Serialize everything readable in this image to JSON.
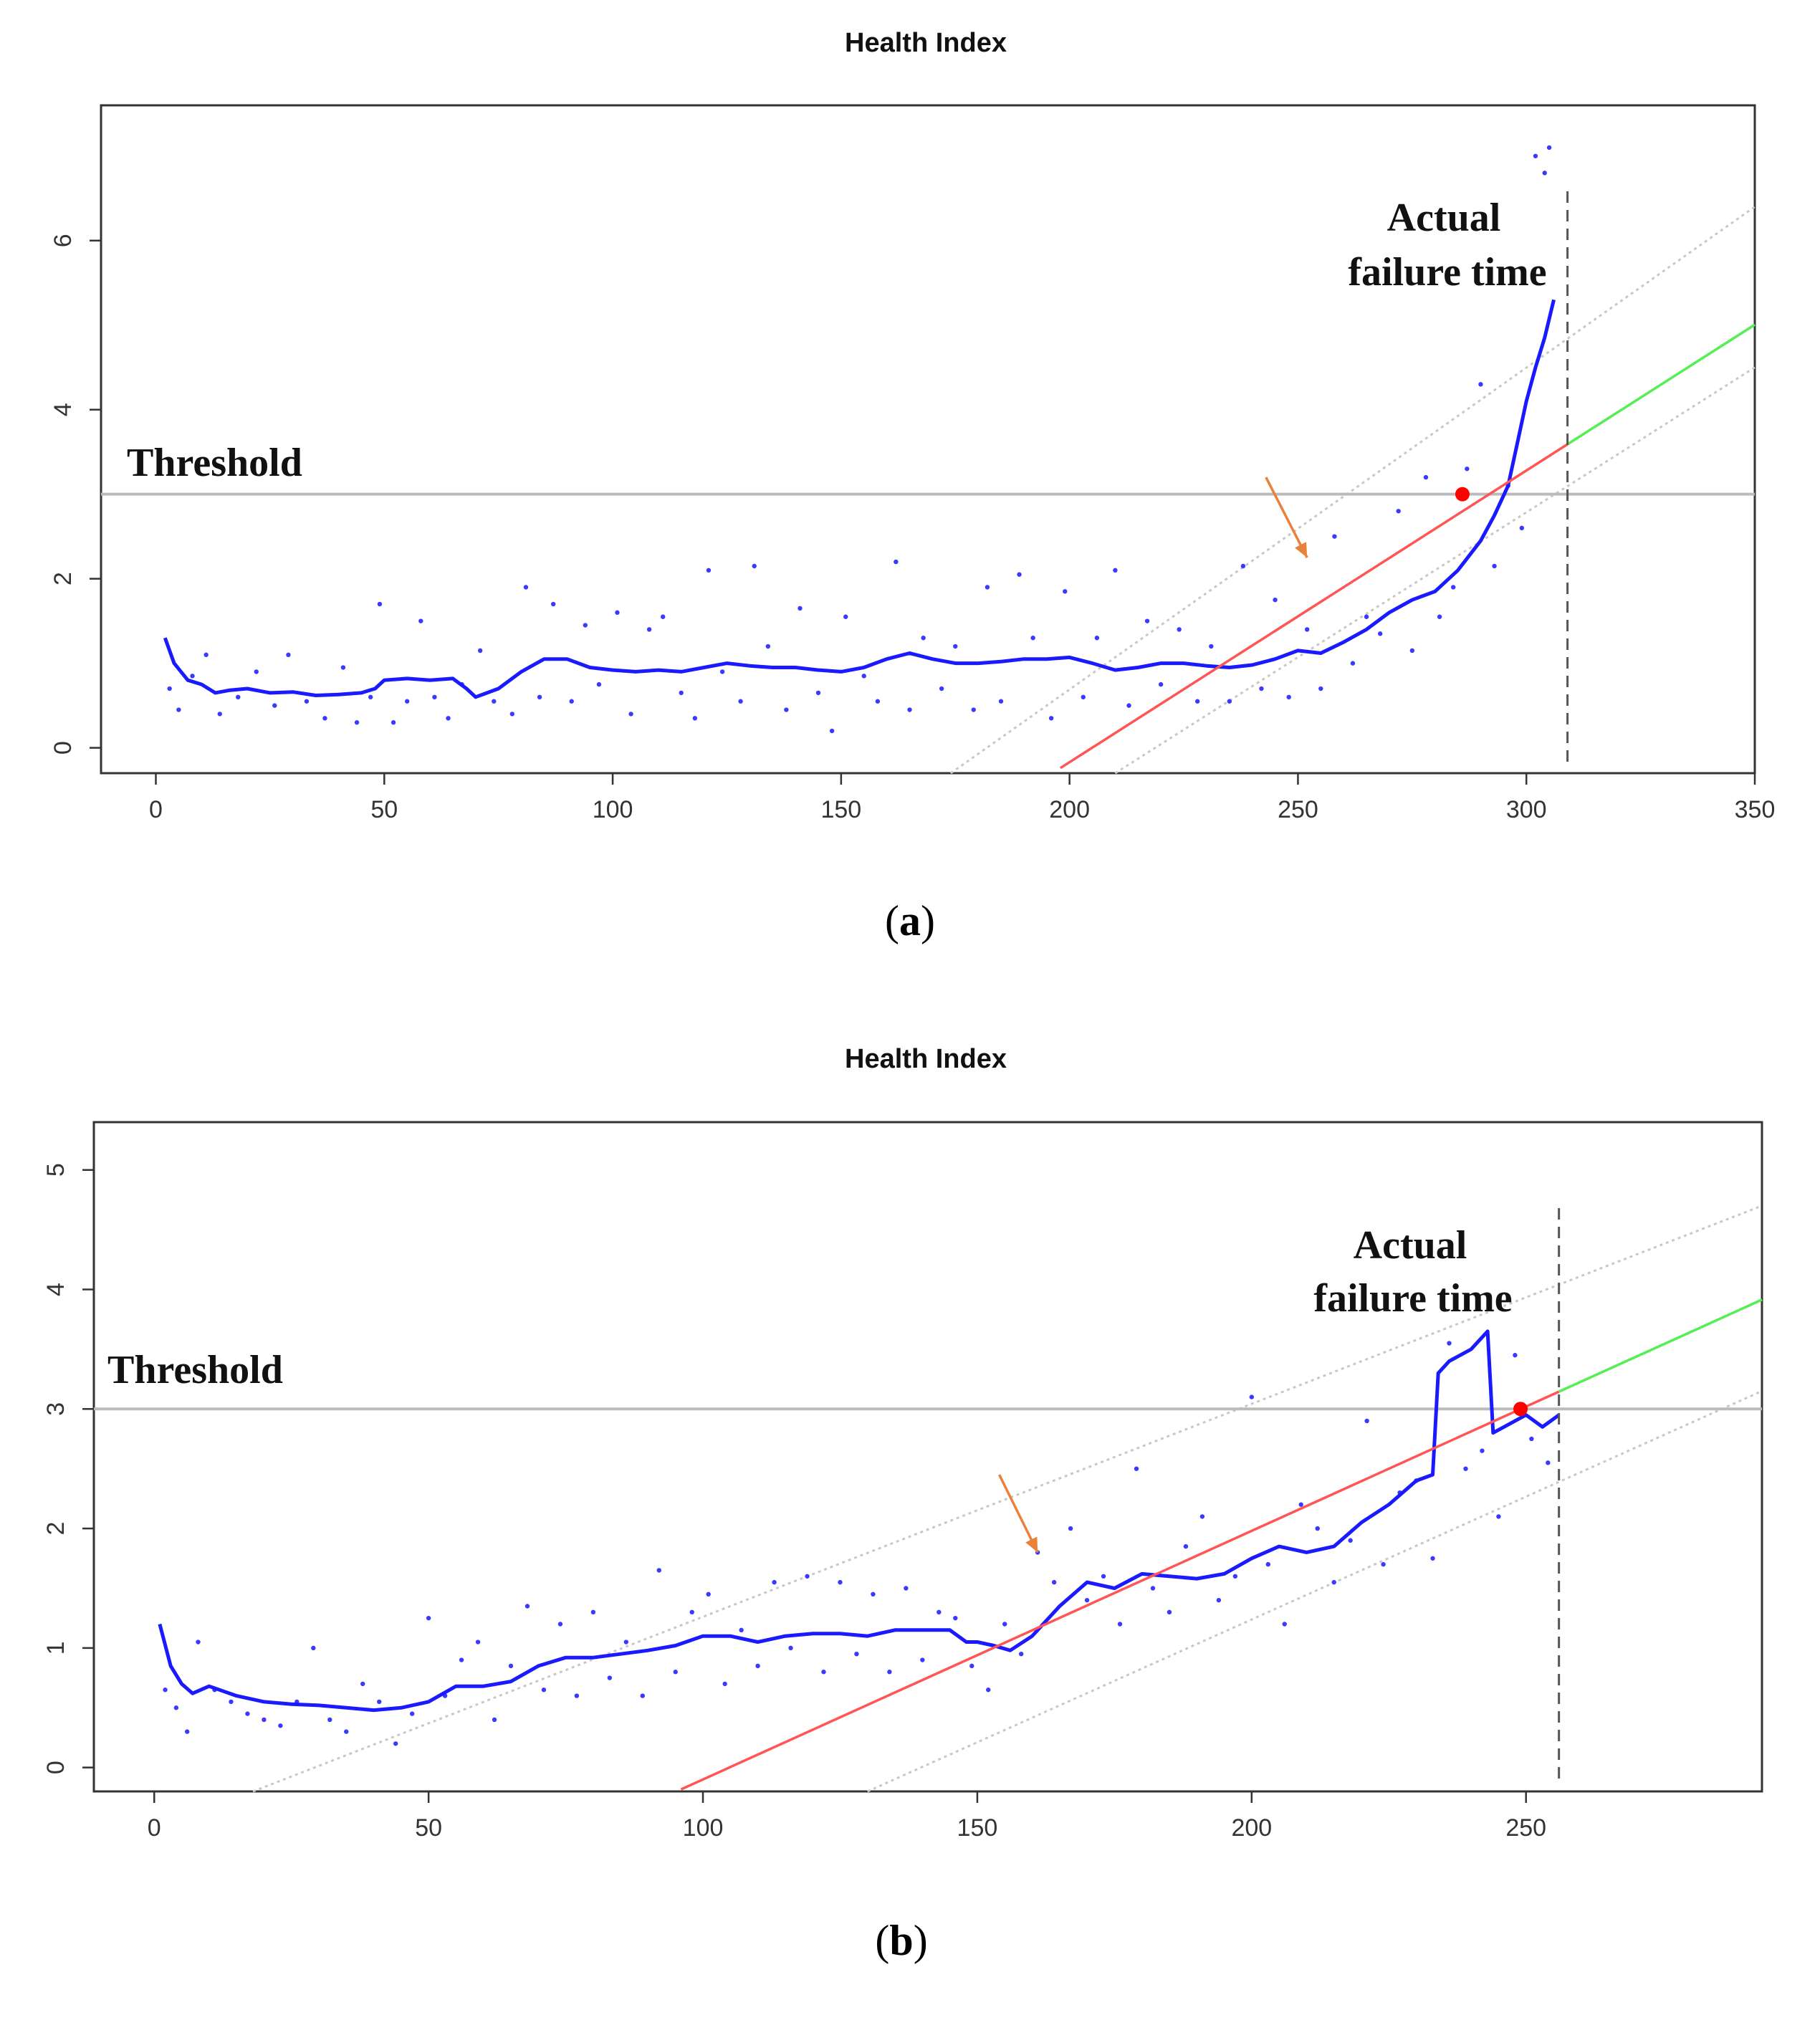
{
  "chart_data": [
    {
      "id": "a",
      "type": "scatter",
      "title": "Health Index",
      "caption_letter": "a",
      "xlim": [
        -12,
        350
      ],
      "ylim": [
        -0.3,
        7.6
      ],
      "xticks": [
        0,
        50,
        100,
        150,
        200,
        250,
        300,
        350
      ],
      "yticks": [
        0,
        2,
        4,
        6
      ],
      "threshold_value": 3,
      "threshold_label": "Threshold",
      "failure_x": 309,
      "failure_label_line1": "Actual",
      "failure_label_line2": "failure time",
      "crossing_point": [
        286,
        3.0
      ],
      "arrow": {
        "from": [
          243,
          3.2
        ],
        "to": [
          252,
          2.25
        ]
      },
      "trend_fit": {
        "slope": 0.0345,
        "intercept": -7.07,
        "x_start": 198,
        "x_end": 309
      },
      "trend_forecast": {
        "x_start": 309,
        "x_end": 350
      },
      "upper_band": {
        "points": [
          [
            174,
            -0.3
          ],
          [
            350,
            6.4
          ]
        ]
      },
      "lower_band": {
        "points": [
          [
            210,
            -0.3
          ],
          [
            350,
            4.5
          ]
        ]
      },
      "series": [
        {
          "name": "smoothed health index",
          "x": [
            2,
            4,
            7,
            10,
            13,
            16,
            20,
            25,
            30,
            35,
            40,
            45,
            48,
            50,
            55,
            60,
            65,
            68,
            70,
            75,
            80,
            85,
            90,
            95,
            100,
            105,
            110,
            115,
            120,
            125,
            130,
            135,
            140,
            145,
            150,
            155,
            160,
            165,
            170,
            175,
            180,
            185,
            190,
            195,
            200,
            205,
            210,
            215,
            220,
            225,
            230,
            235,
            240,
            245,
            250,
            255,
            260,
            265,
            270,
            275,
            280,
            285,
            290,
            293,
            296,
            298,
            300,
            302,
            304,
            306
          ],
          "values": [
            1.3,
            1.0,
            0.8,
            0.75,
            0.65,
            0.68,
            0.7,
            0.65,
            0.66,
            0.62,
            0.63,
            0.65,
            0.7,
            0.8,
            0.82,
            0.8,
            0.82,
            0.7,
            0.6,
            0.7,
            0.9,
            1.05,
            1.05,
            0.95,
            0.92,
            0.9,
            0.92,
            0.9,
            0.95,
            1.0,
            0.97,
            0.95,
            0.95,
            0.92,
            0.9,
            0.95,
            1.05,
            1.12,
            1.05,
            1.0,
            1.0,
            1.02,
            1.05,
            1.05,
            1.07,
            1.0,
            0.92,
            0.95,
            1.0,
            1.0,
            0.97,
            0.95,
            0.98,
            1.05,
            1.15,
            1.12,
            1.25,
            1.4,
            1.6,
            1.75,
            1.85,
            2.1,
            2.45,
            2.75,
            3.1,
            3.6,
            4.1,
            4.5,
            4.85,
            5.3
          ]
        },
        {
          "name": "health index observations",
          "x": [
            3,
            5,
            8,
            11,
            14,
            18,
            22,
            26,
            29,
            33,
            37,
            41,
            44,
            47,
            49,
            52,
            55,
            58,
            61,
            64,
            67,
            71,
            74,
            78,
            81,
            84,
            87,
            91,
            94,
            97,
            101,
            104,
            108,
            111,
            115,
            118,
            121,
            124,
            128,
            131,
            134,
            138,
            141,
            145,
            148,
            151,
            155,
            158,
            162,
            165,
            168,
            172,
            175,
            179,
            182,
            185,
            189,
            192,
            196,
            199,
            203,
            206,
            210,
            213,
            217,
            220,
            224,
            228,
            231,
            235,
            238,
            242,
            245,
            248,
            252,
            255,
            258,
            262,
            265,
            268,
            272,
            275,
            278,
            281,
            284,
            287,
            290,
            293,
            296,
            299,
            302,
            304,
            305
          ],
          "values": [
            0.7,
            0.45,
            0.85,
            1.1,
            0.4,
            0.6,
            0.9,
            0.5,
            1.1,
            0.55,
            0.35,
            0.95,
            0.3,
            0.6,
            1.7,
            0.3,
            0.55,
            1.5,
            0.6,
            0.35,
            0.75,
            1.15,
            0.55,
            0.4,
            1.9,
            0.6,
            1.7,
            0.55,
            1.45,
            0.75,
            1.6,
            0.4,
            1.4,
            1.55,
            0.65,
            0.35,
            2.1,
            0.9,
            0.55,
            2.15,
            1.2,
            0.45,
            1.65,
            0.65,
            0.2,
            1.55,
            0.85,
            0.55,
            2.2,
            0.45,
            1.3,
            0.7,
            1.2,
            0.45,
            1.9,
            0.55,
            2.05,
            1.3,
            0.35,
            1.85,
            0.6,
            1.3,
            2.1,
            0.5,
            1.5,
            0.75,
            1.4,
            0.55,
            1.2,
            0.55,
            2.15,
            0.7,
            1.75,
            0.6,
            1.4,
            0.7,
            2.5,
            1.0,
            1.55,
            1.35,
            2.8,
            1.15,
            3.2,
            1.55,
            1.9,
            3.3,
            4.3,
            2.15,
            3.1,
            2.6,
            7.0,
            6.8,
            7.1
          ]
        }
      ]
    },
    {
      "id": "b",
      "type": "scatter",
      "title": "Health Index",
      "caption_letter": "b",
      "xlim": [
        -11,
        293
      ],
      "ylim": [
        -0.2,
        5.4
      ],
      "xticks": [
        0,
        50,
        100,
        150,
        200,
        250
      ],
      "yticks": [
        0,
        1,
        2,
        3,
        4,
        5
      ],
      "threshold_value": 3,
      "threshold_label": "Threshold",
      "failure_x": 256,
      "failure_label_line1": "Actual",
      "failure_label_line2": "failure time",
      "crossing_point": [
        249,
        3.0
      ],
      "arrow": {
        "from": [
          154,
          2.45
        ],
        "to": [
          161,
          1.8
        ]
      },
      "trend_fit": {
        "slope": 0.0208,
        "intercept": -2.18,
        "x_start": 96,
        "x_end": 256
      },
      "trend_forecast": {
        "x_start": 256,
        "x_end": 293
      },
      "upper_band": {
        "points": [
          [
            18,
            -0.2
          ],
          [
            293,
            4.7
          ]
        ]
      },
      "lower_band": {
        "points": [
          [
            130,
            -0.2
          ],
          [
            293,
            3.15
          ]
        ]
      },
      "series": [
        {
          "name": "smoothed health index",
          "x": [
            1,
            3,
            5,
            7,
            10,
            15,
            20,
            25,
            30,
            35,
            40,
            45,
            50,
            55,
            60,
            65,
            70,
            75,
            80,
            85,
            90,
            95,
            100,
            105,
            110,
            115,
            120,
            125,
            130,
            135,
            140,
            145,
            148,
            150,
            153,
            156,
            160,
            165,
            170,
            175,
            180,
            185,
            190,
            195,
            200,
            205,
            210,
            215,
            220,
            225,
            230,
            233,
            234,
            236,
            240,
            243,
            244,
            246,
            250,
            253,
            256
          ],
          "values": [
            1.2,
            0.85,
            0.7,
            0.62,
            0.68,
            0.6,
            0.55,
            0.53,
            0.52,
            0.5,
            0.48,
            0.5,
            0.55,
            0.68,
            0.68,
            0.72,
            0.85,
            0.92,
            0.92,
            0.95,
            0.98,
            1.02,
            1.1,
            1.1,
            1.05,
            1.1,
            1.12,
            1.12,
            1.1,
            1.15,
            1.15,
            1.15,
            1.05,
            1.05,
            1.02,
            0.98,
            1.1,
            1.35,
            1.55,
            1.5,
            1.62,
            1.6,
            1.58,
            1.62,
            1.75,
            1.85,
            1.8,
            1.85,
            2.05,
            2.2,
            2.4,
            2.45,
            3.3,
            3.4,
            3.5,
            3.65,
            2.8,
            2.85,
            2.95,
            2.85,
            2.95
          ]
        },
        {
          "name": "health index observations",
          "x": [
            2,
            4,
            6,
            8,
            11,
            14,
            17,
            20,
            23,
            26,
            29,
            32,
            35,
            38,
            41,
            44,
            47,
            50,
            53,
            56,
            59,
            62,
            65,
            68,
            71,
            74,
            77,
            80,
            83,
            86,
            89,
            92,
            95,
            98,
            101,
            104,
            107,
            110,
            113,
            116,
            119,
            122,
            125,
            128,
            131,
            134,
            137,
            140,
            143,
            146,
            149,
            152,
            155,
            158,
            161,
            164,
            167,
            170,
            173,
            176,
            179,
            182,
            185,
            188,
            191,
            194,
            197,
            200,
            203,
            206,
            209,
            212,
            215,
            218,
            221,
            224,
            227,
            230,
            233,
            236,
            239,
            242,
            245,
            248,
            251,
            254
          ],
          "values": [
            0.65,
            0.5,
            0.3,
            1.05,
            0.65,
            0.55,
            0.45,
            0.4,
            0.35,
            0.55,
            1.0,
            0.4,
            0.3,
            0.7,
            0.55,
            0.2,
            0.45,
            1.25,
            0.6,
            0.9,
            1.05,
            0.4,
            0.85,
            1.35,
            0.65,
            1.2,
            0.6,
            1.3,
            0.75,
            1.05,
            0.6,
            1.65,
            0.8,
            1.3,
            1.45,
            0.7,
            1.15,
            0.85,
            1.55,
            1.0,
            1.6,
            0.8,
            1.55,
            0.95,
            1.45,
            0.8,
            1.5,
            0.9,
            1.3,
            1.25,
            0.85,
            0.65,
            1.2,
            0.95,
            1.8,
            1.55,
            2.0,
            1.4,
            1.6,
            1.2,
            2.5,
            1.5,
            1.3,
            1.85,
            2.1,
            1.4,
            1.6,
            3.1,
            1.7,
            1.2,
            2.2,
            2.0,
            1.55,
            1.9,
            2.9,
            1.7,
            2.3,
            2.4,
            1.75,
            3.55,
            2.5,
            2.65,
            2.1,
            3.45,
            2.75,
            2.55
          ]
        }
      ]
    }
  ]
}
